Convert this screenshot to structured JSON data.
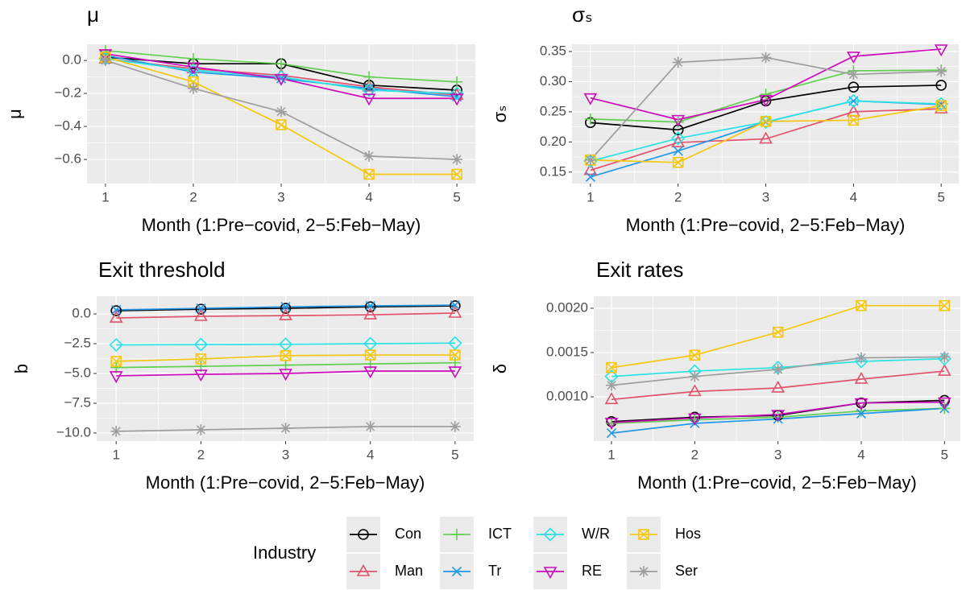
{
  "legend": {
    "title": "Industry",
    "position": "bottom"
  },
  "chart_data": [
    {
      "type": "line",
      "title": "μ",
      "x_label": "Month (1:Pre−covid, 2−5:Feb−May)",
      "y_label": "μ",
      "x": [
        1,
        2,
        3,
        4,
        5
      ],
      "xlim": [
        0.79,
        5.21
      ],
      "xticks": [
        1,
        2,
        3,
        4,
        5
      ],
      "ylim": [
        -0.746,
        0.098
      ],
      "yticks": [
        {
          "value": 0,
          "label": "0.0"
        },
        {
          "value": -0.2,
          "label": "−0.2"
        },
        {
          "value": -0.4,
          "label": "−0.4"
        },
        {
          "value": -0.6,
          "label": "−0.6"
        }
      ],
      "grid": true,
      "series": [
        {
          "name": "Con",
          "color": "#000000",
          "marker": "circle",
          "values": [
            0.02,
            -0.02,
            -0.02,
            -0.15,
            -0.18
          ]
        },
        {
          "name": "Man",
          "color": "#DF536B",
          "marker": "triangle",
          "values": [
            0.01,
            -0.05,
            -0.09,
            -0.16,
            -0.21
          ]
        },
        {
          "name": "ICT",
          "color": "#61D04F",
          "marker": "plus",
          "values": [
            0.06,
            0.01,
            -0.02,
            -0.1,
            -0.13
          ]
        },
        {
          "name": "Tr",
          "color": "#2297E6",
          "marker": "cross",
          "values": [
            0.03,
            -0.07,
            -0.11,
            -0.17,
            -0.22
          ]
        },
        {
          "name": "W/R",
          "color": "#28E2E5",
          "marker": "diamond",
          "values": [
            0.01,
            -0.06,
            -0.1,
            -0.18,
            -0.2
          ]
        },
        {
          "name": "RE",
          "color": "#CD0BBC",
          "marker": "triangle-down",
          "values": [
            0.04,
            -0.04,
            -0.11,
            -0.23,
            -0.23
          ]
        },
        {
          "name": "Hos",
          "color": "#F5C710",
          "marker": "square-cross",
          "values": [
            0.02,
            -0.13,
            -0.39,
            -0.69,
            -0.69
          ]
        },
        {
          "name": "Ser",
          "color": "#9E9E9E",
          "marker": "asterisk",
          "values": [
            0.0,
            -0.17,
            -0.31,
            -0.58,
            -0.6
          ]
        }
      ]
    },
    {
      "type": "line",
      "title": "σₛ",
      "x_label": "Month (1:Pre−covid, 2−5:Feb−May)",
      "y_label": "σₛ",
      "x": [
        1,
        2,
        3,
        4,
        5
      ],
      "xlim": [
        0.79,
        5.2
      ],
      "xticks": [
        1,
        2,
        3,
        4,
        5
      ],
      "ylim": [
        0.131,
        0.362
      ],
      "yticks": [
        0.15,
        {
          "value": 0.2,
          "label": "0.20"
        },
        0.25,
        {
          "value": 0.3,
          "label": "0.30"
        },
        0.35
      ],
      "grid": true,
      "series": [
        {
          "color": "#000000",
          "marker": "circle",
          "values": [
            0.232,
            0.22,
            0.268,
            0.291,
            0.294
          ]
        },
        {
          "color": "#DF536B",
          "marker": "triangle",
          "values": [
            0.153,
            0.199,
            0.205,
            0.25,
            0.255
          ]
        },
        {
          "color": "#61D04F",
          "marker": "plus",
          "values": [
            0.238,
            0.233,
            0.279,
            0.318,
            0.319
          ]
        },
        {
          "color": "#2297E6",
          "marker": "cross",
          "values": [
            0.142,
            0.185,
            0.233,
            0.268,
            0.262
          ]
        },
        {
          "color": "#28E2E5",
          "marker": "diamond",
          "values": [
            0.168,
            0.206,
            0.233,
            0.268,
            0.263
          ]
        },
        {
          "color": "#CD0BBC",
          "marker": "triangle-down",
          "values": [
            0.273,
            0.237,
            0.27,
            0.342,
            0.354
          ]
        },
        {
          "color": "#F5C710",
          "marker": "square-cross",
          "values": [
            0.17,
            0.166,
            0.234,
            0.236,
            0.26
          ]
        },
        {
          "color": "#9E9E9E",
          "marker": "asterisk",
          "values": [
            0.17,
            0.332,
            0.34,
            0.312,
            0.317
          ]
        }
      ]
    },
    {
      "type": "line",
      "title": "Exit threshold",
      "x_label": "Month (1:Pre−covid, 2−5:Feb−May)",
      "y_label": "b",
      "x": [
        1,
        2,
        3,
        4,
        5
      ],
      "xlim": [
        0.77,
        5.22
      ],
      "xticks": [
        1,
        2,
        3,
        4,
        5
      ],
      "ylim": [
        -10.68,
        1.49
      ],
      "yticks": [
        {
          "value": 0,
          "label": "0.0"
        },
        {
          "value": -2.5,
          "label": "−2.5"
        },
        {
          "value": -5,
          "label": "−5.0"
        },
        {
          "value": -7.5,
          "label": "−7.5"
        },
        {
          "value": -10,
          "label": "−10.0"
        }
      ],
      "grid": true,
      "series": [
        {
          "color": "#000000",
          "marker": "circle",
          "values": [
            0.27,
            0.4,
            0.47,
            0.6,
            0.68
          ]
        },
        {
          "color": "#DF536B",
          "marker": "triangle",
          "values": [
            -0.34,
            -0.2,
            -0.14,
            -0.07,
            0.07
          ]
        },
        {
          "color": "#61D04F",
          "marker": "plus",
          "values": [
            -4.5,
            -4.4,
            -4.3,
            -4.2,
            -4.1
          ]
        },
        {
          "color": "#2297E6",
          "marker": "cross",
          "values": [
            0.34,
            0.47,
            0.6,
            0.68,
            0.74
          ]
        },
        {
          "color": "#28E2E5",
          "marker": "diamond",
          "values": [
            -2.6,
            -2.57,
            -2.55,
            -2.5,
            -2.45
          ]
        },
        {
          "color": "#CD0BBC",
          "marker": "triangle-down",
          "values": [
            -5.2,
            -5.07,
            -5.0,
            -4.8,
            -4.8
          ]
        },
        {
          "color": "#F5C710",
          "marker": "square-cross",
          "values": [
            -3.98,
            -3.78,
            -3.5,
            -3.45,
            -3.45
          ]
        },
        {
          "color": "#9E9E9E",
          "marker": "asterisk",
          "values": [
            -9.86,
            -9.73,
            -9.6,
            -9.46,
            -9.46
          ]
        }
      ]
    },
    {
      "type": "line",
      "title": "Exit rates",
      "x_label": "Month (1:Pre−covid, 2−5:Feb−May)",
      "y_label": "δ",
      "x": [
        1,
        2,
        3,
        4,
        5
      ],
      "xlim": [
        0.787,
        5.19
      ],
      "xticks": [
        1,
        2,
        3,
        4,
        5
      ],
      "ylim": [
        0.0005,
        0.002136
      ],
      "yticks": [
        {
          "value": 0.001,
          "label": "0.0010"
        },
        {
          "value": 0.0015,
          "label": "0.0015"
        },
        {
          "value": 0.002,
          "label": "0.0020"
        }
      ],
      "grid": true,
      "series": [
        {
          "color": "#000000",
          "marker": "circle",
          "values": [
            0.00072,
            0.00077,
            0.00079,
            0.00093,
            0.00096
          ]
        },
        {
          "color": "#DF536B",
          "marker": "triangle",
          "values": [
            0.00097,
            0.00106,
            0.0011,
            0.0012,
            0.00129
          ]
        },
        {
          "color": "#61D04F",
          "marker": "plus",
          "values": [
            0.0007,
            0.00074,
            0.00077,
            0.00084,
            0.00087
          ]
        },
        {
          "color": "#2297E6",
          "marker": "cross",
          "values": [
            0.00059,
            0.0007,
            0.00075,
            0.00081,
            0.00087
          ]
        },
        {
          "color": "#28E2E5",
          "marker": "diamond",
          "values": [
            0.00123,
            0.00129,
            0.00133,
            0.0014,
            0.00143
          ]
        },
        {
          "color": "#CD0BBC",
          "marker": "triangle-down",
          "values": [
            0.00071,
            0.00076,
            0.0008,
            0.00093,
            0.00094
          ]
        },
        {
          "color": "#F5C710",
          "marker": "square-cross",
          "values": [
            0.00133,
            0.00147,
            0.00173,
            0.00203,
            0.00203
          ]
        },
        {
          "color": "#9E9E9E",
          "marker": "asterisk",
          "values": [
            0.00113,
            0.00123,
            0.00131,
            0.00144,
            0.00145
          ]
        }
      ]
    }
  ]
}
